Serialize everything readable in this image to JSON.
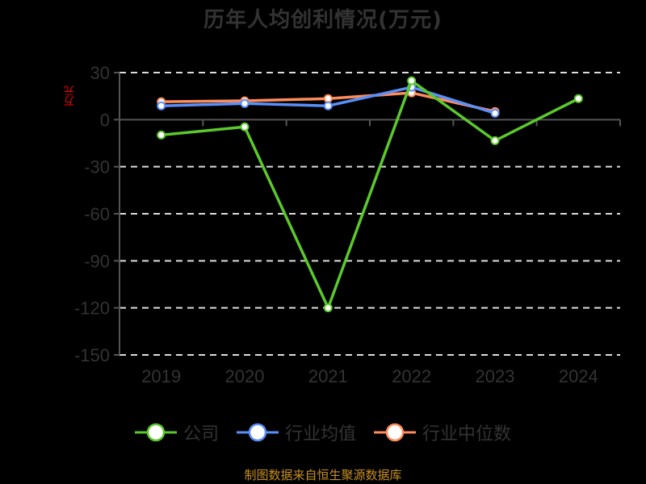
{
  "chart_data": {
    "type": "line",
    "title": "历年人均创利情况(万元)",
    "xlabel": "",
    "ylabel": "万元",
    "categories": [
      "2019",
      "2020",
      "2021",
      "2022",
      "2023",
      "2024"
    ],
    "ylim": [
      -150,
      30
    ],
    "yticks": [
      30,
      0,
      -30,
      -60,
      -90,
      -120,
      -150
    ],
    "grid": true,
    "legend_position": "bottom",
    "series": [
      {
        "name": "公司",
        "color": "#5bc92c",
        "values": [
          -9.8,
          -4.6,
          -120.0,
          24.8,
          -13.4,
          13.4
        ]
      },
      {
        "name": "行业均值",
        "color": "#5b8ff9",
        "values": [
          8.8,
          10.3,
          8.8,
          20.7,
          4.1,
          null
        ]
      },
      {
        "name": "行业中位数",
        "color": "#ff8c5a",
        "values": [
          11.4,
          12.0,
          13.4,
          17.1,
          5.2,
          null
        ]
      }
    ]
  },
  "footer": {
    "source": "制图数据来自恒生聚源数据库"
  }
}
